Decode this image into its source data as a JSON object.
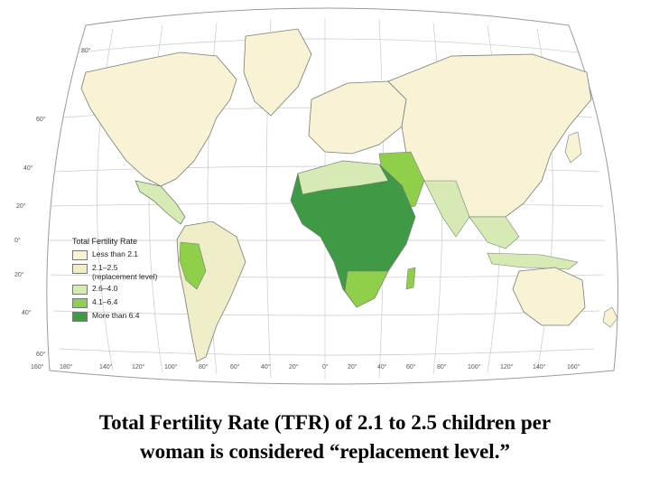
{
  "map": {
    "land_color_less_21": "#f7f3d4",
    "ocean_color": "#ffffff",
    "lat_labels": [
      "80°",
      "60°",
      "40°",
      "20°",
      "0°",
      "20°",
      "40°",
      "60°"
    ],
    "lon_labels": [
      "160°",
      "180°",
      "140°",
      "120°",
      "100°",
      "80°",
      "60°",
      "40°",
      "20°",
      "0°",
      "20°",
      "40°",
      "60°",
      "80°",
      "100°",
      "120°",
      "140°",
      "160°"
    ]
  },
  "legend": {
    "title": "Total Fertility Rate",
    "items": [
      {
        "label": "Less than 2.1",
        "sub": "",
        "color": "#f7f3d4"
      },
      {
        "label": "2.1–2.5",
        "sub": "(replacement level)",
        "color": "#efeec8"
      },
      {
        "label": "2.6–4.0",
        "sub": "",
        "color": "#d6ebb4"
      },
      {
        "label": "4.1–6.4",
        "sub": "",
        "color": "#8fcf4a"
      },
      {
        "label": "More than 6.4",
        "sub": "",
        "color": "#3f9a45"
      }
    ]
  },
  "caption": {
    "line1": "Total Fertility Rate (TFR) of 2.1 to 2.5 children per",
    "line2": "woman is considered “replacement level.”"
  }
}
